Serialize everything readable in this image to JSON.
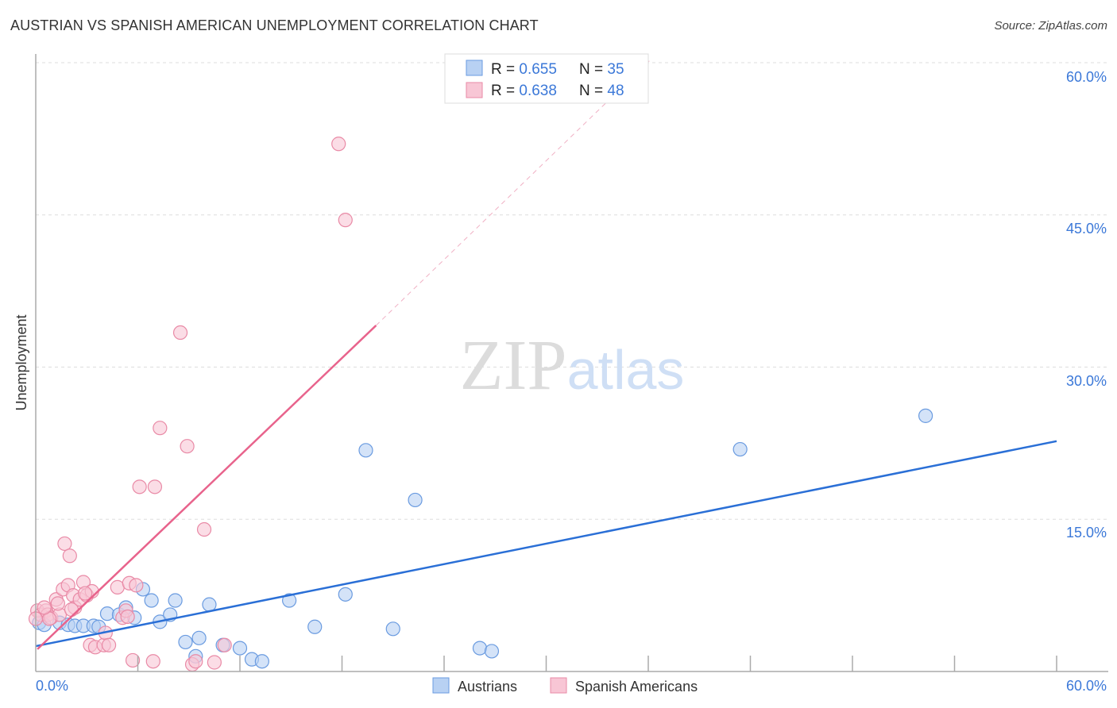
{
  "chart_data": {
    "type": "scatter",
    "title": "AUSTRIAN VS SPANISH AMERICAN UNEMPLOYMENT CORRELATION CHART",
    "source": "Source: ZipAtlas.com",
    "ylabel": "Unemployment",
    "xlabel": "",
    "xlim": [
      0,
      60
    ],
    "ylim": [
      0,
      60
    ],
    "x_tick_labels": [
      "0.0%",
      "60.0%"
    ],
    "y_ticks": [
      15,
      30,
      45,
      60
    ],
    "y_tick_labels": [
      "15.0%",
      "30.0%",
      "45.0%",
      "60.0%"
    ],
    "grid": true,
    "watermark": "ZIPatlas",
    "legend_position": "top-center",
    "series": [
      {
        "name": "Austrians",
        "color": "#6a9be0",
        "fill": "#b8d1f3",
        "line_color": "#2a6fd6",
        "R": "0.655",
        "N": "35",
        "trend": [
          [
            0,
            2.5
          ],
          [
            60,
            22.7
          ]
        ],
        "points": [
          [
            0.2,
            4.8
          ],
          [
            0.5,
            4.6
          ],
          [
            1.4,
            4.8
          ],
          [
            1.9,
            4.6
          ],
          [
            2.3,
            4.5
          ],
          [
            2.8,
            4.5
          ],
          [
            3.4,
            4.5
          ],
          [
            3.7,
            4.4
          ],
          [
            4.2,
            5.7
          ],
          [
            4.9,
            5.6
          ],
          [
            5.3,
            6.3
          ],
          [
            5.8,
            5.3
          ],
          [
            6.3,
            8.1
          ],
          [
            6.8,
            7.0
          ],
          [
            7.3,
            4.9
          ],
          [
            7.9,
            5.6
          ],
          [
            8.2,
            7.0
          ],
          [
            8.8,
            2.9
          ],
          [
            9.4,
            1.5
          ],
          [
            9.6,
            3.3
          ],
          [
            10.2,
            6.6
          ],
          [
            11.0,
            2.6
          ],
          [
            12.0,
            2.3
          ],
          [
            12.7,
            1.2
          ],
          [
            13.3,
            1.0
          ],
          [
            14.9,
            7.0
          ],
          [
            16.4,
            4.4
          ],
          [
            18.2,
            7.6
          ],
          [
            19.4,
            21.8
          ],
          [
            21.0,
            4.2
          ],
          [
            22.3,
            16.9
          ],
          [
            26.1,
            2.3
          ],
          [
            26.8,
            2.0
          ],
          [
            41.4,
            21.9
          ],
          [
            52.3,
            25.2
          ]
        ]
      },
      {
        "name": "Spanish Americans",
        "color": "#e98aa6",
        "fill": "#f8c6d5",
        "line_color": "#e8638c",
        "R": "0.638",
        "N": "48",
        "trend": [
          [
            0.1,
            2.2
          ],
          [
            20.0,
            34.1
          ]
        ],
        "trend_dashed_to": [
          36.2,
          60.4
        ],
        "points": [
          [
            0.1,
            6.0
          ],
          [
            0.3,
            5.6
          ],
          [
            0.6,
            6.0
          ],
          [
            0.7,
            5.6
          ],
          [
            0.9,
            5.3
          ],
          [
            1.2,
            7.1
          ],
          [
            1.4,
            5.6
          ],
          [
            1.6,
            8.1
          ],
          [
            1.7,
            12.6
          ],
          [
            1.9,
            8.5
          ],
          [
            2.0,
            11.4
          ],
          [
            2.2,
            7.5
          ],
          [
            2.3,
            6.3
          ],
          [
            2.6,
            7.1
          ],
          [
            2.8,
            8.8
          ],
          [
            3.0,
            7.5
          ],
          [
            3.3,
            7.9
          ],
          [
            3.2,
            2.6
          ],
          [
            3.5,
            2.4
          ],
          [
            4.0,
            2.6
          ],
          [
            4.1,
            3.8
          ],
          [
            4.3,
            2.6
          ],
          [
            4.8,
            8.3
          ],
          [
            5.1,
            5.3
          ],
          [
            5.3,
            6.0
          ],
          [
            5.5,
            8.7
          ],
          [
            5.7,
            1.1
          ],
          [
            5.9,
            8.5
          ],
          [
            6.1,
            18.2
          ],
          [
            6.9,
            1.0
          ],
          [
            7.0,
            18.2
          ],
          [
            7.3,
            24.0
          ],
          [
            8.5,
            33.4
          ],
          [
            8.9,
            22.2
          ],
          [
            9.2,
            0.7
          ],
          [
            9.4,
            1.0
          ],
          [
            9.9,
            14.0
          ],
          [
            10.5,
            0.9
          ],
          [
            11.1,
            2.6
          ],
          [
            17.8,
            52.0
          ],
          [
            18.2,
            44.5
          ],
          [
            5.4,
            5.4
          ],
          [
            0.8,
            5.2
          ],
          [
            2.1,
            6.1
          ],
          [
            0,
            5.2
          ],
          [
            0.5,
            6.3
          ],
          [
            1.3,
            6.7
          ],
          [
            2.9,
            7.7
          ]
        ]
      }
    ]
  }
}
